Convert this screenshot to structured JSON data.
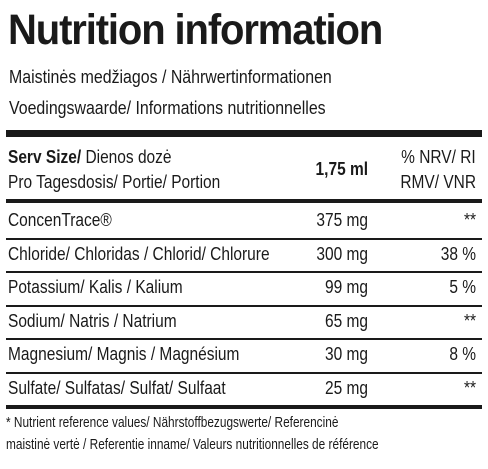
{
  "title": "Nutrition information",
  "subtitles": [
    "Maistinės medžiagos / Nährwertinformationen",
    "Voedingswaarde/ Informations nutritionnelles"
  ],
  "header": {
    "serv_size_bold": "Serv Size/",
    "serv_size_rest": " Dienos dozė",
    "serv_size_line2": "Pro Tagesdosis/ Portie/ Portion",
    "amount": "1,75 ml",
    "nrv_line1": "% NRV/ RI",
    "nrv_line2": "RMV/ VNR"
  },
  "rows": [
    {
      "name": "ConcenTrace®",
      "amount": "375 mg",
      "nrv": "**"
    },
    {
      "name": "Chloride/ Chloridas / Chlorid/ Chlorure",
      "amount": "300 mg",
      "nrv": "38 %"
    },
    {
      "name": "Potassium/ Kalis / Kalium",
      "amount": "99 mg",
      "nrv": "5 %"
    },
    {
      "name": "Sodium/ Natris / Natrium",
      "amount": "65 mg",
      "nrv": "**"
    },
    {
      "name": "Magnesium/ Magnis / Magnésium",
      "amount": "30 mg",
      "nrv": "8 %"
    },
    {
      "name": "Sulfate/ Sulfatas/ Sulfat/ Sulfaat",
      "amount": "25 mg",
      "nrv": "**"
    }
  ],
  "footnote": [
    "* Nutrient reference values/ Nährstoffbezugswerte/ Referencinė",
    "maistinė vertė / Referentie inname/ Valeurs nutritionnelles de référence"
  ]
}
